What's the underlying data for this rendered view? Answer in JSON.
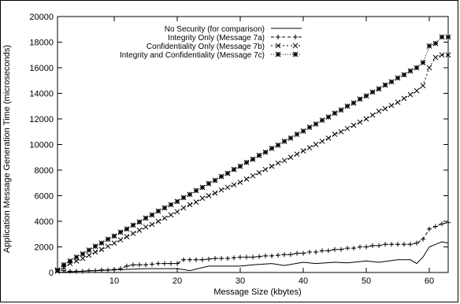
{
  "chart_data": {
    "type": "line",
    "xlabel": "Message Size (kbytes)",
    "ylabel": "Application Message Generation Time (microseconds)",
    "xlim": [
      1,
      63
    ],
    "ylim": [
      0,
      20000
    ],
    "xticks": [
      10,
      20,
      30,
      40,
      50,
      60
    ],
    "yticks": [
      0,
      2000,
      4000,
      6000,
      8000,
      10000,
      12000,
      14000,
      16000,
      18000,
      20000
    ],
    "legend_position": "top-left",
    "grid": false,
    "series": [
      {
        "name": "No Security (for comparison)",
        "marker": "none",
        "dash": "solid",
        "x": [
          1,
          5,
          10,
          15,
          20,
          22,
          25,
          27,
          30,
          32,
          35,
          37,
          40,
          42,
          45,
          47,
          50,
          52,
          55,
          57,
          58,
          59,
          60,
          61,
          62,
          63
        ],
        "y": [
          0,
          100,
          200,
          300,
          300,
          150,
          500,
          500,
          500,
          600,
          700,
          550,
          800,
          700,
          800,
          750,
          900,
          800,
          1000,
          1000,
          700,
          1200,
          2000,
          2200,
          2400,
          2300
        ]
      },
      {
        "name": "Integrity Only (Message 7a)",
        "marker": "plus",
        "dash": "4,3",
        "x": [
          1,
          2,
          3,
          4,
          5,
          6,
          7,
          8,
          9,
          10,
          11,
          12,
          13,
          14,
          15,
          16,
          17,
          18,
          19,
          20,
          21,
          22,
          23,
          24,
          25,
          26,
          27,
          28,
          29,
          30,
          31,
          32,
          33,
          34,
          35,
          36,
          37,
          38,
          39,
          40,
          41,
          42,
          43,
          44,
          45,
          46,
          47,
          48,
          49,
          50,
          51,
          52,
          53,
          54,
          55,
          56,
          57,
          58,
          59,
          60,
          61,
          62,
          63
        ],
        "y": [
          200,
          150,
          100,
          100,
          100,
          150,
          150,
          200,
          200,
          250,
          300,
          500,
          600,
          600,
          600,
          650,
          700,
          700,
          700,
          700,
          1000,
          1000,
          1000,
          1000,
          1050,
          1100,
          1100,
          1100,
          1150,
          1200,
          1200,
          1200,
          1250,
          1300,
          1300,
          1350,
          1400,
          1400,
          1500,
          1500,
          1600,
          1600,
          1700,
          1700,
          1800,
          1800,
          1900,
          1900,
          2000,
          2000,
          2100,
          2100,
          2200,
          2200,
          2200,
          2200,
          2200,
          2300,
          2600,
          3400,
          3600,
          3800,
          3900
        ]
      },
      {
        "name": "Confidentiality Only (Message 7b)",
        "marker": "cross",
        "dash": "2,3",
        "x": [
          1,
          2,
          3,
          4,
          5,
          6,
          7,
          8,
          9,
          10,
          11,
          12,
          13,
          14,
          15,
          16,
          17,
          18,
          19,
          20,
          21,
          22,
          23,
          24,
          25,
          26,
          27,
          28,
          29,
          30,
          31,
          32,
          33,
          34,
          35,
          36,
          37,
          38,
          39,
          40,
          41,
          42,
          43,
          44,
          45,
          46,
          47,
          48,
          49,
          50,
          51,
          52,
          53,
          54,
          55,
          56,
          57,
          58,
          59,
          60,
          61,
          62,
          63
        ],
        "y": [
          100,
          400,
          700,
          900,
          1100,
          1350,
          1600,
          1800,
          2050,
          2300,
          2550,
          2800,
          3050,
          3300,
          3550,
          3750,
          4000,
          4250,
          4500,
          4750,
          5050,
          5300,
          5500,
          5800,
          6000,
          6200,
          6450,
          6650,
          6850,
          7050,
          7300,
          7550,
          7800,
          8050,
          8300,
          8550,
          8750,
          9000,
          9250,
          9500,
          9750,
          10000,
          10250,
          10500,
          10800,
          11000,
          11250,
          11500,
          11750,
          12000,
          12300,
          12600,
          12800,
          13050,
          13300,
          13600,
          13900,
          14200,
          14600,
          16000,
          16800,
          17000,
          17000
        ]
      },
      {
        "name": "Integrity and Confidentiality (Message 7c)",
        "marker": "star",
        "dash": "1,2",
        "x": [
          1,
          2,
          3,
          4,
          5,
          6,
          7,
          8,
          9,
          10,
          11,
          12,
          13,
          14,
          15,
          16,
          17,
          18,
          19,
          20,
          21,
          22,
          23,
          24,
          25,
          26,
          27,
          28,
          29,
          30,
          31,
          32,
          33,
          34,
          35,
          36,
          37,
          38,
          39,
          40,
          41,
          42,
          43,
          44,
          45,
          46,
          47,
          48,
          49,
          50,
          51,
          52,
          53,
          54,
          55,
          56,
          57,
          58,
          59,
          60,
          61,
          62,
          63
        ],
        "y": [
          200,
          600,
          900,
          1200,
          1450,
          1750,
          2050,
          2300,
          2600,
          2850,
          3150,
          3400,
          3700,
          3950,
          4250,
          4500,
          4800,
          5050,
          5300,
          5550,
          5850,
          6100,
          6400,
          6650,
          6950,
          7200,
          7500,
          7750,
          8050,
          8300,
          8600,
          8850,
          9150,
          9400,
          9700,
          9950,
          10250,
          10500,
          10800,
          11050,
          11350,
          11600,
          11900,
          12150,
          12450,
          12700,
          13000,
          13250,
          13550,
          13800,
          14100,
          14350,
          14650,
          14900,
          15200,
          15450,
          15750,
          16000,
          16400,
          17700,
          17900,
          18400,
          18400
        ]
      }
    ]
  }
}
